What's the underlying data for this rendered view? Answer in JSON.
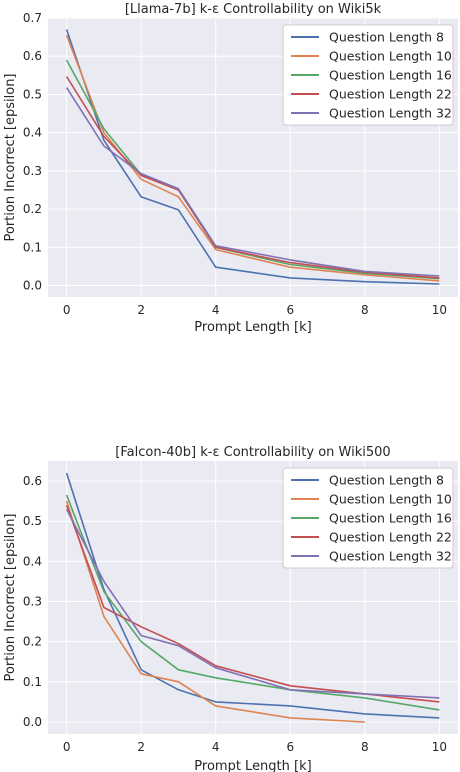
{
  "chart_data": [
    {
      "type": "line",
      "title": "[Llama-7b] k-ε Controllability on Wiki5k",
      "xlabel": "Prompt Length [k]",
      "ylabel": "Portion Incorrect [epsilon]",
      "xlim": [
        -0.5,
        10.5
      ],
      "ylim": [
        -0.03,
        0.7
      ],
      "xticks": [
        0,
        2,
        4,
        6,
        8,
        10
      ],
      "yticks": [
        0.0,
        0.1,
        0.2,
        0.3,
        0.4,
        0.5,
        0.6,
        0.7
      ],
      "grid": true,
      "legend": "top-right",
      "x": [
        0,
        1,
        2,
        3,
        4,
        6,
        8,
        10
      ],
      "series": [
        {
          "name": "Question Length 8",
          "color": "#4c72b0",
          "values": [
            0.67,
            0.38,
            0.232,
            0.198,
            0.048,
            0.02,
            0.01,
            0.004
          ]
        },
        {
          "name": "Question Length 10",
          "color": "#dd8452",
          "values": [
            0.655,
            0.4,
            0.278,
            0.232,
            0.094,
            0.048,
            0.028,
            0.012
          ]
        },
        {
          "name": "Question Length 16",
          "color": "#55a868",
          "values": [
            0.59,
            0.41,
            0.29,
            0.25,
            0.1,
            0.055,
            0.032,
            0.018
          ]
        },
        {
          "name": "Question Length 22",
          "color": "#c44e52",
          "values": [
            0.547,
            0.39,
            0.288,
            0.25,
            0.1,
            0.06,
            0.035,
            0.02
          ]
        },
        {
          "name": "Question Length 32",
          "color": "#8172b3",
          "values": [
            0.518,
            0.365,
            0.293,
            0.253,
            0.104,
            0.067,
            0.037,
            0.025
          ]
        }
      ]
    },
    {
      "type": "line",
      "title": "[Falcon-40b] k-ε Controllability on Wiki500",
      "xlabel": "Prompt Length [k]",
      "ylabel": "Portion Incorrect [epsilon]",
      "xlim": [
        -0.5,
        10.5
      ],
      "ylim": [
        -0.03,
        0.65
      ],
      "xticks": [
        0,
        2,
        4,
        6,
        8,
        10
      ],
      "yticks": [
        0.0,
        0.1,
        0.2,
        0.3,
        0.4,
        0.5,
        0.6
      ],
      "grid": true,
      "legend": "top-right",
      "series": [
        {
          "name": "Question Length 8",
          "color": "#4c72b0",
          "x": [
            0,
            1,
            2,
            3,
            4,
            6,
            8,
            10
          ],
          "values": [
            0.62,
            0.33,
            0.13,
            0.08,
            0.05,
            0.04,
            0.02,
            0.01
          ]
        },
        {
          "name": "Question Length 10",
          "color": "#dd8452",
          "x": [
            0,
            1,
            2,
            3,
            4,
            6,
            8
          ],
          "values": [
            0.55,
            0.263,
            0.12,
            0.1,
            0.04,
            0.01,
            0.0
          ]
        },
        {
          "name": "Question Length 16",
          "color": "#55a868",
          "x": [
            0,
            1,
            2,
            3,
            4,
            6,
            8,
            10
          ],
          "values": [
            0.565,
            0.325,
            0.2,
            0.13,
            0.11,
            0.08,
            0.06,
            0.03
          ]
        },
        {
          "name": "Question Length 22",
          "color": "#c44e52",
          "x": [
            0,
            1,
            2,
            3,
            4,
            6,
            8,
            10
          ],
          "values": [
            0.54,
            0.285,
            0.237,
            0.195,
            0.14,
            0.09,
            0.07,
            0.05
          ]
        },
        {
          "name": "Question Length 32",
          "color": "#8172b3",
          "x": [
            0,
            1,
            2,
            3,
            4,
            6,
            8,
            10
          ],
          "values": [
            0.53,
            0.35,
            0.215,
            0.19,
            0.135,
            0.08,
            0.07,
            0.06
          ]
        }
      ]
    }
  ]
}
